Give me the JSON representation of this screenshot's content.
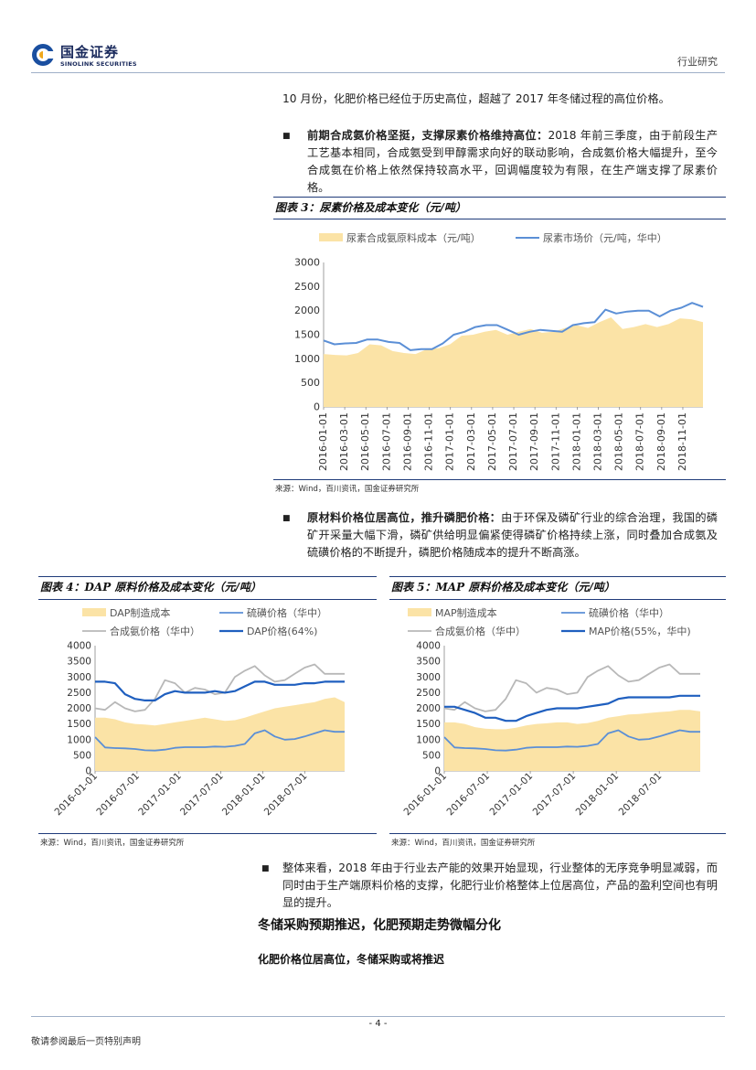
{
  "header": {
    "logo_cn": "国金证券",
    "logo_en": "SINOLINK SECURITIES",
    "section": "行业研究"
  },
  "body": {
    "para1": "10 月份，化肥价格已经位于历史高位，超越了 2017 年冬储过程的高位价格。",
    "bullet1_title": "前期合成氨价格坚挺，支撑尿素价格维持高位：",
    "bullet1_text": "2018 年前三季度，由于前段生产工艺基本相同，合成氨受到甲醇需求向好的联动影响，合成氨价格大幅提升，至今合成氨在价格上依然保持较高水平，回调幅度较为有限，在生产端支撑了尿素价格。",
    "bullet2_title": "原材料价格位居高位，推升磷肥价格：",
    "bullet2_text": "由于环保及磷矿行业的综合治理，我国的磷矿开采量大幅下滑，磷矿供给明显偏紧使得磷矿价格持续上涨，同时叠加合成氨及硫磺价格的不断提升，磷肥价格随成本的提升不断高涨。",
    "bullet3_text": "整体来看，2018 年由于行业去产能的效果开始显现，行业整体的无序竞争明显减弱，而同时由于生产端原料价格的支撑，化肥行业价格整体上位居高位，产品的盈利空间也有明显的提升。",
    "heading2": "冬储采购预期推迟，化肥预期走势微幅分化",
    "heading3": "化肥价格位居高位，冬储采购或将推迟"
  },
  "figures": {
    "fig3_caption": "图表 3：尿素价格及成本变化（元/吨）",
    "fig4_caption": "图表 4：DAP 原料价格及成本变化（元/吨）",
    "fig5_caption": "图表 5：MAP 原料价格及成本变化（元/吨）",
    "fig3_source": "来源：Wind，百川资讯，国金证券研究所",
    "fig4_source": "来源：Wind，百川资讯，国金证券研究所",
    "fig5_source": "来源：Wind，百川资讯，国金证券研究所"
  },
  "footer": {
    "page": "- 4 -",
    "disclaimer": "敬请参阅最后一页特别声明"
  },
  "colors": {
    "area": "#fbe3a6",
    "blue_light": "#5b8fd6",
    "blue_dark": "#1f5fbf",
    "gray": "#b8b8b8",
    "rule": "#1f3b7a"
  },
  "chart_data": [
    {
      "type": "area",
      "ylim": [
        0,
        3000
      ],
      "yticks": [
        "0",
        "500",
        "1000",
        "1500",
        "2000",
        "2500",
        "3000"
      ],
      "xticks": [
        "2016-01-01",
        "2016-03-01",
        "2016-05-01",
        "2016-07-01",
        "2016-09-01",
        "2016-11-01",
        "2017-01-01",
        "2017-03-01",
        "2017-05-01",
        "2017-07-01",
        "2017-09-01",
        "2017-11-01",
        "2018-01-01",
        "2018-03-01",
        "2018-05-01",
        "2018-07-01",
        "2018-09-01",
        "2018-11-01"
      ],
      "series": [
        {
          "name": "尿素合成氨原料成本（元/吨）",
          "kind": "area",
          "values": [
            1100,
            1080,
            1070,
            1120,
            1300,
            1280,
            1160,
            1120,
            1100,
            1200,
            1220,
            1300,
            1480,
            1500,
            1560,
            1600,
            1500,
            1560,
            1620,
            1540,
            1560,
            1640,
            1700,
            1640,
            1760,
            1860,
            1620,
            1660,
            1720,
            1660,
            1720,
            1840,
            1820,
            1760
          ]
        },
        {
          "name": "尿素市场价（元/吨，华中）",
          "kind": "line",
          "values": [
            1380,
            1300,
            1320,
            1330,
            1400,
            1400,
            1350,
            1330,
            1180,
            1200,
            1200,
            1320,
            1500,
            1560,
            1660,
            1700,
            1700,
            1600,
            1500,
            1560,
            1600,
            1580,
            1560,
            1700,
            1740,
            1760,
            2020,
            1940,
            1980,
            2000,
            2000,
            1880,
            2000,
            2060,
            2160,
            2080
          ]
        }
      ]
    },
    {
      "type": "area",
      "ylim": [
        0,
        4000
      ],
      "yticks": [
        "0",
        "500",
        "1000",
        "1500",
        "2000",
        "2500",
        "3000",
        "3500",
        "4000"
      ],
      "xticks": [
        "2016-01-01",
        "2016-07-01",
        "2017-01-01",
        "2017-07-01",
        "2018-01-01",
        "2018-07-01"
      ],
      "series": [
        {
          "name": "DAP制造成本",
          "kind": "area",
          "values": [
            1700,
            1700,
            1650,
            1550,
            1500,
            1480,
            1450,
            1500,
            1550,
            1600,
            1650,
            1700,
            1650,
            1600,
            1620,
            1700,
            1800,
            1900,
            2000,
            2050,
            2100,
            2150,
            2200,
            2300,
            2350,
            2200
          ]
        },
        {
          "name": "硫磺价格（华中）",
          "kind": "line",
          "values": [
            1080,
            750,
            730,
            720,
            700,
            660,
            650,
            680,
            740,
            760,
            760,
            760,
            780,
            770,
            800,
            860,
            1200,
            1300,
            1100,
            1000,
            1020,
            1100,
            1200,
            1300,
            1250,
            1250
          ]
        },
        {
          "name": "合成氨价格（华中）",
          "kind": "line",
          "values": [
            2000,
            1950,
            2200,
            2000,
            1900,
            1950,
            2300,
            2900,
            2800,
            2500,
            2650,
            2600,
            2450,
            2500,
            3000,
            3200,
            3350,
            3050,
            2850,
            2900,
            3100,
            3300,
            3400,
            3100,
            3100,
            3100
          ]
        },
        {
          "name": "DAP价格(64%)",
          "kind": "line",
          "values": [
            2850,
            2850,
            2800,
            2450,
            2300,
            2250,
            2250,
            2450,
            2550,
            2500,
            2500,
            2500,
            2550,
            2500,
            2550,
            2700,
            2850,
            2850,
            2750,
            2750,
            2750,
            2800,
            2800,
            2850,
            2850,
            2850
          ]
        }
      ]
    },
    {
      "type": "area",
      "ylim": [
        0,
        4000
      ],
      "yticks": [
        "0",
        "500",
        "1000",
        "1500",
        "2000",
        "2500",
        "3000",
        "3500",
        "4000"
      ],
      "xticks": [
        "2016-01-01",
        "2016-07-01",
        "2017-01-01",
        "2017-07-01",
        "2018-01-01",
        "2018-07-01"
      ],
      "series": [
        {
          "name": "MAP制造成本",
          "kind": "area",
          "values": [
            1550,
            1550,
            1500,
            1400,
            1350,
            1330,
            1330,
            1380,
            1450,
            1500,
            1520,
            1550,
            1550,
            1500,
            1530,
            1600,
            1700,
            1750,
            1800,
            1820,
            1850,
            1880,
            1900,
            1950,
            1950,
            1900
          ]
        },
        {
          "name": "硫磺价格（华中）",
          "kind": "line",
          "values": [
            1080,
            750,
            730,
            720,
            700,
            660,
            650,
            680,
            740,
            760,
            760,
            760,
            780,
            770,
            800,
            860,
            1200,
            1300,
            1100,
            1000,
            1020,
            1100,
            1200,
            1300,
            1250,
            1250
          ]
        },
        {
          "name": "合成氨价格（华中）",
          "kind": "line",
          "values": [
            2000,
            1950,
            2200,
            2000,
            1900,
            1950,
            2300,
            2900,
            2800,
            2500,
            2650,
            2600,
            2450,
            2500,
            3000,
            3200,
            3350,
            3050,
            2850,
            2900,
            3100,
            3300,
            3400,
            3100,
            3100,
            3100
          ]
        },
        {
          "name": "MAP价格(55%，华中)",
          "kind": "line",
          "values": [
            2050,
            2050,
            1950,
            1850,
            1700,
            1700,
            1600,
            1600,
            1750,
            1850,
            1950,
            2000,
            2000,
            2000,
            2050,
            2100,
            2150,
            2300,
            2350,
            2350,
            2350,
            2350,
            2350,
            2400,
            2400,
            2400
          ]
        }
      ]
    }
  ]
}
